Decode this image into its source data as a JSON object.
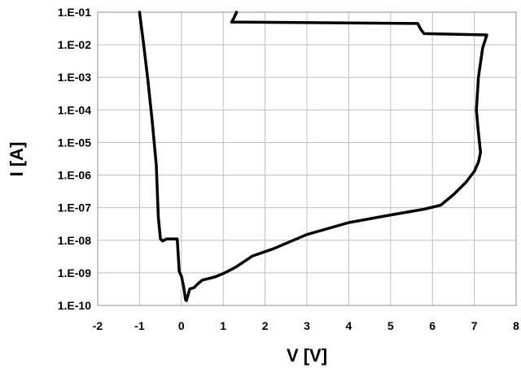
{
  "chart_data": {
    "type": "line",
    "xlabel": "V [V]",
    "ylabel": "I [A]",
    "xlim": [
      -2,
      8
    ],
    "ylim": [
      1e-10,
      0.1
    ],
    "yscale": "log",
    "grid": true,
    "x_tick_labels": [
      "-2",
      "-1",
      "0",
      "1",
      "2",
      "3",
      "4",
      "5",
      "6",
      "7",
      "8"
    ],
    "y_tick_labels": [
      "1.E-10",
      "1.E-09",
      "1.E-08",
      "1.E-07",
      "1.E-06",
      "1.E-05",
      "1.E-04",
      "1.E-03",
      "1.E-02",
      "1.E-01"
    ],
    "series": [
      {
        "x": [
          -1.0,
          -0.9,
          -0.8,
          -0.7,
          -0.6,
          -0.55,
          -0.5,
          -0.45,
          -0.35,
          -0.2,
          -0.1,
          -0.05,
          0.0,
          0.05,
          0.1,
          0.12,
          0.2,
          0.3,
          0.4,
          0.5,
          0.8,
          1.0,
          1.3,
          1.7,
          2.2,
          3.0,
          4.0,
          5.0,
          5.8,
          6.2,
          6.5,
          6.8,
          7.0,
          7.1,
          7.15,
          7.1,
          7.05,
          7.1,
          7.2,
          7.3,
          5.8,
          5.72,
          5.65,
          1.2,
          1.25,
          1.32
        ],
        "y": [
          0.1,
          0.01,
          0.0008,
          5e-05,
          2e-06,
          5e-08,
          1.1e-08,
          9.5e-09,
          1.1e-08,
          1.1e-08,
          1.1e-08,
          1.1e-09,
          8e-10,
          4e-10,
          1.5e-10,
          1.4e-10,
          3.2e-10,
          3.5e-10,
          4.7e-10,
          6e-10,
          7.5e-10,
          9.5e-10,
          1.5e-09,
          3.3e-09,
          5.5e-09,
          1.5e-08,
          3.5e-08,
          6e-08,
          9e-08,
          1.2e-07,
          2.5e-07,
          6e-07,
          1.3e-06,
          2.5e-06,
          5e-06,
          2e-05,
          0.0001,
          0.001,
          0.008,
          0.02,
          0.022,
          0.03,
          0.045,
          0.05,
          0.065,
          0.1
        ]
      }
    ]
  }
}
